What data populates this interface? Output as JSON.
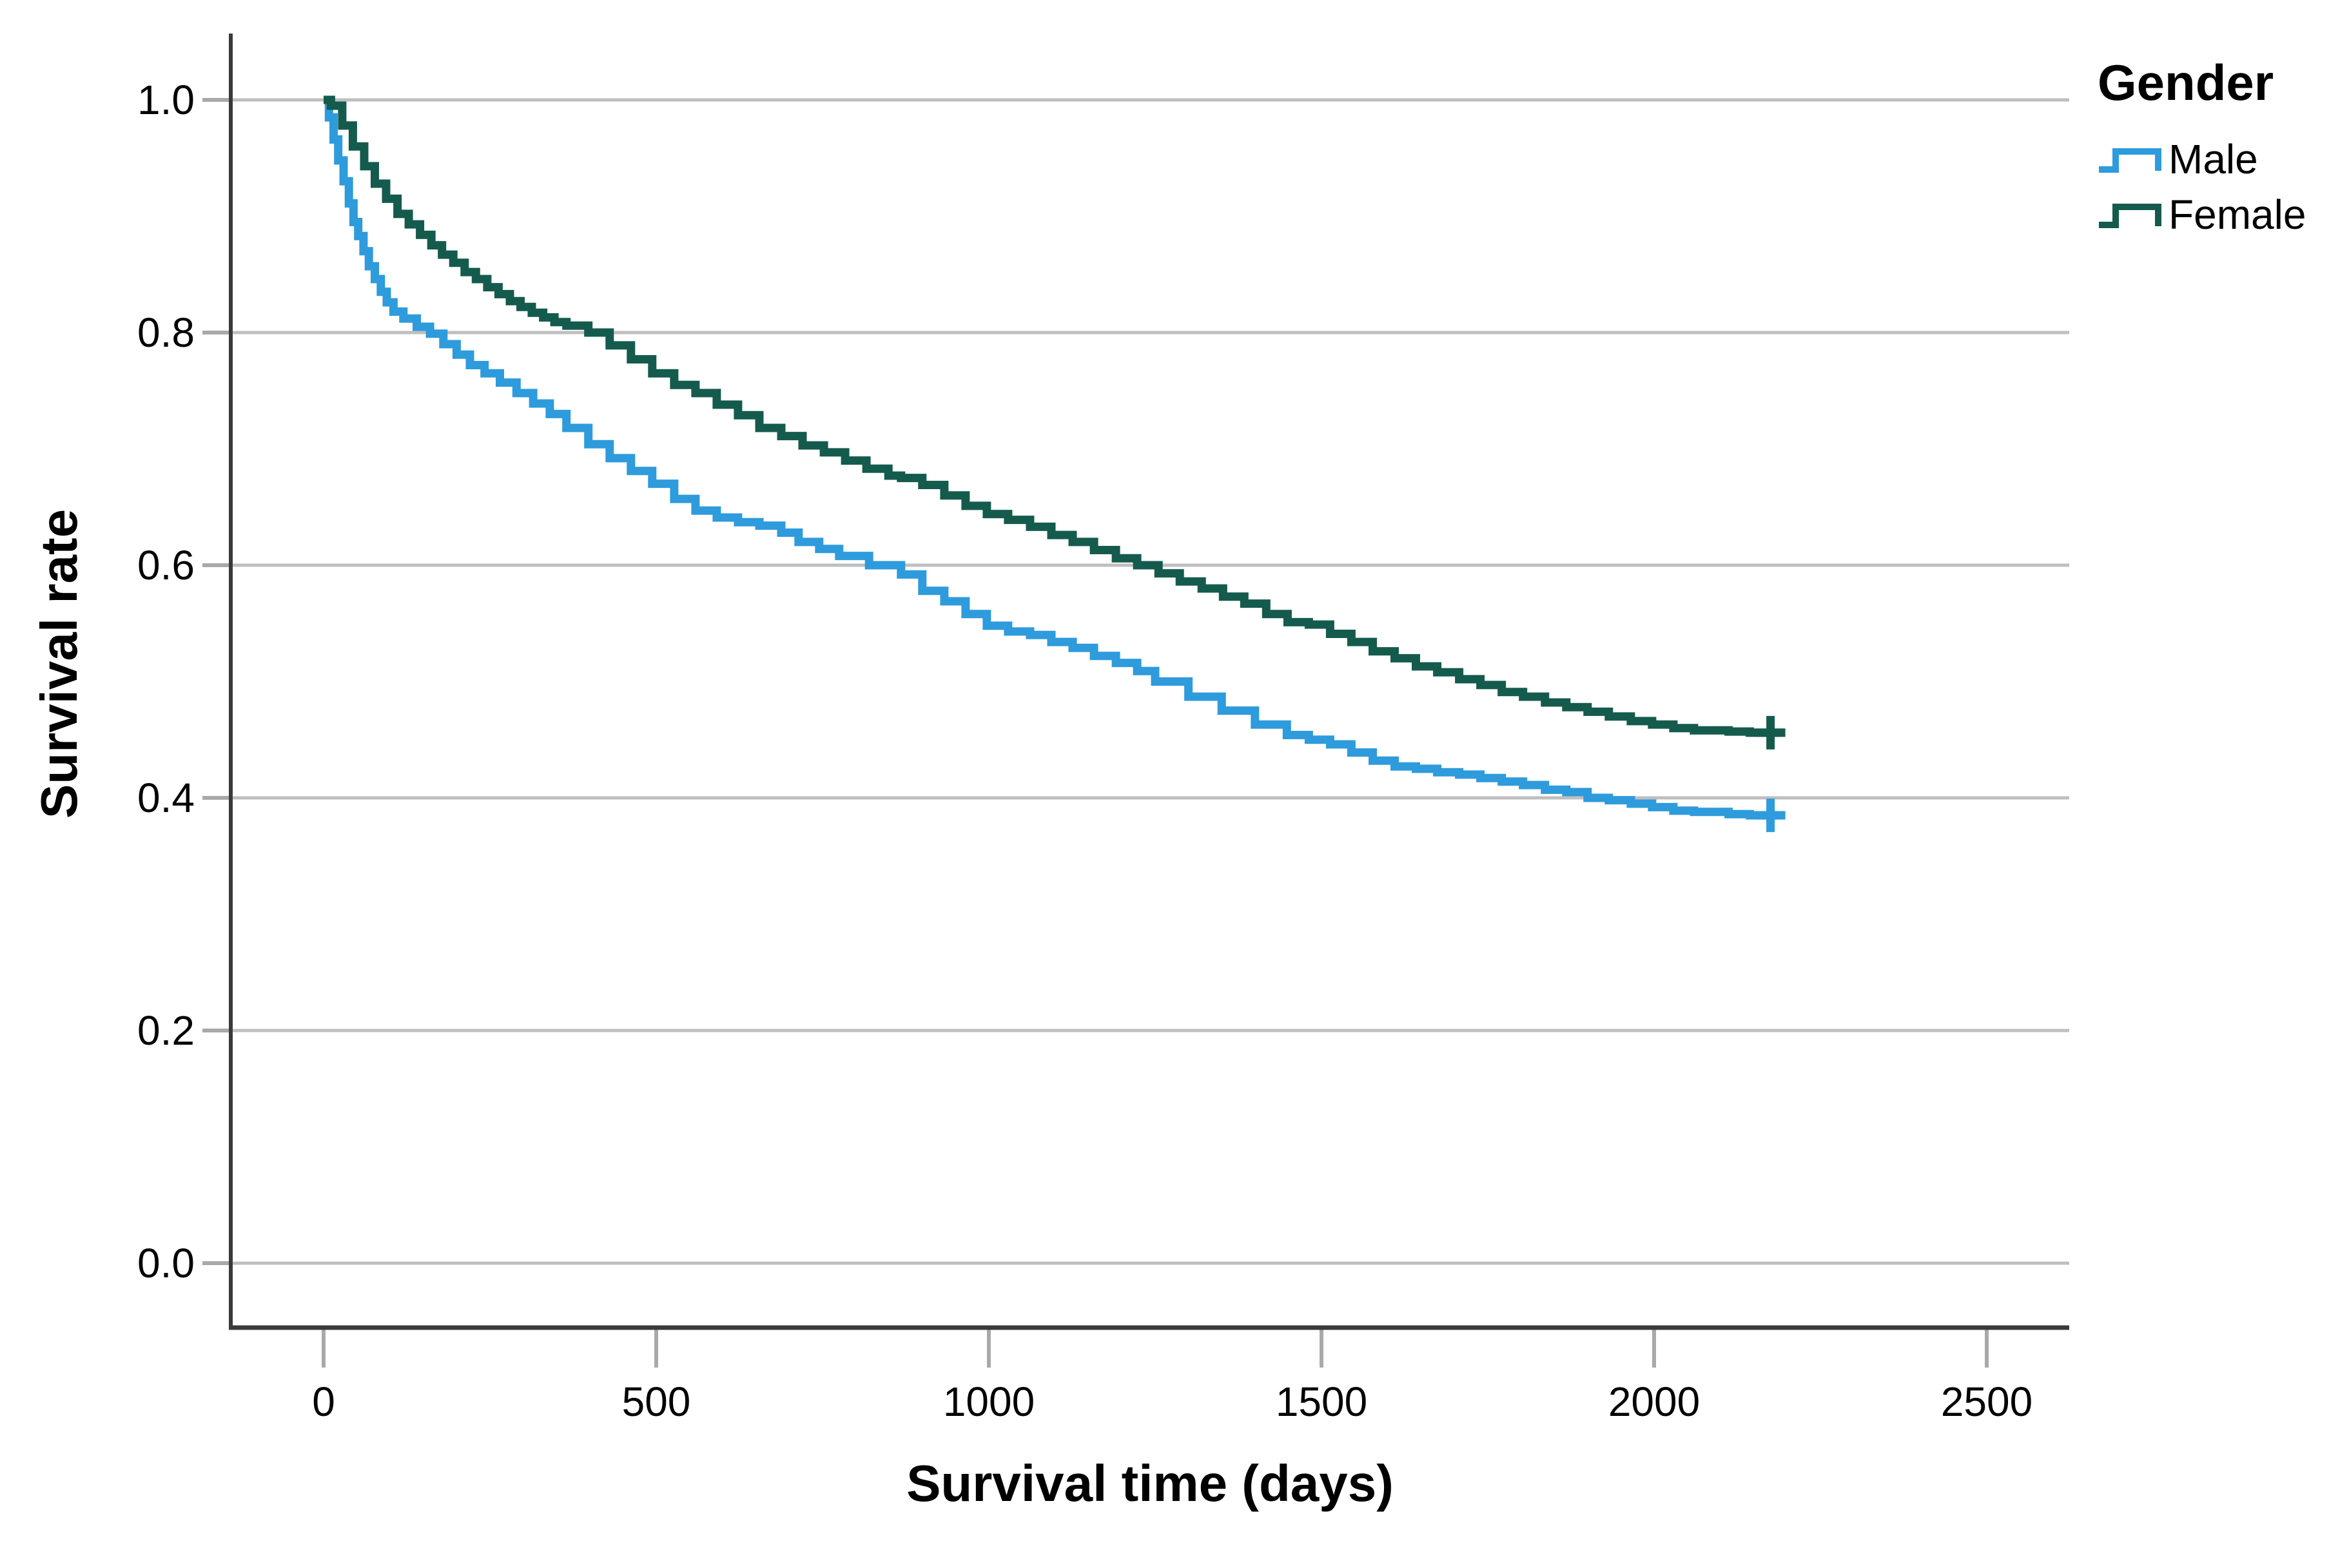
{
  "chart_data": {
    "type": "line",
    "subtype": "kaplan-meier-step-survival",
    "title": "",
    "xlabel": "Survival time (days)",
    "ylabel": "Survival rate",
    "xlim": [
      0,
      2500
    ],
    "ylim": [
      0.0,
      1.0
    ],
    "grid": "horizontal",
    "x_ticks": [
      0,
      500,
      1000,
      1500,
      2000,
      2500
    ],
    "x_tick_labels": [
      "0",
      "500",
      "1000",
      "1500",
      "2000",
      "2500"
    ],
    "y_ticks": [
      0.0,
      0.2,
      0.4,
      0.6,
      0.8,
      1.0
    ],
    "y_tick_labels": [
      "0.0",
      "0.2",
      "0.4",
      "0.6",
      "0.8",
      "1.0"
    ],
    "legend": {
      "title": "Gender",
      "position": "top-right",
      "entries": [
        {
          "label": "Male",
          "color": "#2E9BDC",
          "symbol": "step-line"
        },
        {
          "label": "Female",
          "color": "#145B4D",
          "symbol": "step-line"
        }
      ]
    },
    "colors": {
      "male": "#2E9BDC",
      "female": "#145B4D",
      "gridline": "#BFBFBF",
      "tick": "#A9A9A9",
      "axis": "#3A3A3A",
      "text": "#000000",
      "background": "#FFFFFF"
    },
    "series": [
      {
        "name": "Male",
        "color": "#2E9BDC",
        "censor_marker": "+",
        "censor_times": [
          2175
        ],
        "points": [
          [
            0,
            1.0
          ],
          [
            8,
            0.985
          ],
          [
            15,
            0.966
          ],
          [
            22,
            0.948
          ],
          [
            30,
            0.93
          ],
          [
            38,
            0.911
          ],
          [
            45,
            0.895
          ],
          [
            52,
            0.883
          ],
          [
            60,
            0.87
          ],
          [
            68,
            0.857
          ],
          [
            77,
            0.846
          ],
          [
            86,
            0.835
          ],
          [
            95,
            0.826
          ],
          [
            105,
            0.818
          ],
          [
            120,
            0.812
          ],
          [
            140,
            0.805
          ],
          [
            160,
            0.799
          ],
          [
            180,
            0.79
          ],
          [
            200,
            0.781
          ],
          [
            220,
            0.772
          ],
          [
            242,
            0.765
          ],
          [
            265,
            0.757
          ],
          [
            290,
            0.748
          ],
          [
            315,
            0.739
          ],
          [
            340,
            0.73
          ],
          [
            365,
            0.718
          ],
          [
            398,
            0.704
          ],
          [
            430,
            0.692
          ],
          [
            462,
            0.681
          ],
          [
            494,
            0.67
          ],
          [
            527,
            0.657
          ],
          [
            559,
            0.647
          ],
          [
            591,
            0.641
          ],
          [
            623,
            0.637
          ],
          [
            655,
            0.634
          ],
          [
            688,
            0.628
          ],
          [
            714,
            0.62
          ],
          [
            745,
            0.614
          ],
          [
            775,
            0.608
          ],
          [
            820,
            0.6
          ],
          [
            868,
            0.592
          ],
          [
            900,
            0.578
          ],
          [
            933,
            0.569
          ],
          [
            965,
            0.558
          ],
          [
            997,
            0.548
          ],
          [
            1029,
            0.543
          ],
          [
            1062,
            0.54
          ],
          [
            1094,
            0.534
          ],
          [
            1126,
            0.529
          ],
          [
            1158,
            0.522
          ],
          [
            1191,
            0.516
          ],
          [
            1223,
            0.509
          ],
          [
            1250,
            0.5
          ],
          [
            1300,
            0.487
          ],
          [
            1350,
            0.475
          ],
          [
            1400,
            0.463
          ],
          [
            1448,
            0.454
          ],
          [
            1481,
            0.45
          ],
          [
            1513,
            0.446
          ],
          [
            1545,
            0.439
          ],
          [
            1577,
            0.432
          ],
          [
            1610,
            0.427
          ],
          [
            1642,
            0.425
          ],
          [
            1674,
            0.422
          ],
          [
            1707,
            0.42
          ],
          [
            1739,
            0.417
          ],
          [
            1771,
            0.414
          ],
          [
            1803,
            0.411
          ],
          [
            1836,
            0.407
          ],
          [
            1868,
            0.405
          ],
          [
            1900,
            0.4
          ],
          [
            1932,
            0.398
          ],
          [
            1965,
            0.395
          ],
          [
            1997,
            0.392
          ],
          [
            2029,
            0.389
          ],
          [
            2060,
            0.388
          ],
          [
            2112,
            0.386
          ],
          [
            2144,
            0.385
          ],
          [
            2190,
            0.384
          ]
        ]
      },
      {
        "name": "Female",
        "color": "#145B4D",
        "censor_marker": "+",
        "censor_times": [
          2175
        ],
        "points": [
          [
            0,
            1.0
          ],
          [
            11,
            0.995
          ],
          [
            28,
            0.978
          ],
          [
            44,
            0.96
          ],
          [
            61,
            0.943
          ],
          [
            77,
            0.928
          ],
          [
            94,
            0.915
          ],
          [
            111,
            0.902
          ],
          [
            128,
            0.893
          ],
          [
            145,
            0.884
          ],
          [
            162,
            0.875
          ],
          [
            178,
            0.867
          ],
          [
            195,
            0.86
          ],
          [
            212,
            0.852
          ],
          [
            229,
            0.846
          ],
          [
            246,
            0.839
          ],
          [
            263,
            0.833
          ],
          [
            280,
            0.827
          ],
          [
            296,
            0.822
          ],
          [
            313,
            0.817
          ],
          [
            330,
            0.813
          ],
          [
            347,
            0.809
          ],
          [
            365,
            0.806
          ],
          [
            398,
            0.8
          ],
          [
            430,
            0.789
          ],
          [
            462,
            0.777
          ],
          [
            494,
            0.765
          ],
          [
            527,
            0.755
          ],
          [
            559,
            0.748
          ],
          [
            591,
            0.738
          ],
          [
            623,
            0.729
          ],
          [
            655,
            0.718
          ],
          [
            688,
            0.711
          ],
          [
            720,
            0.703
          ],
          [
            752,
            0.697
          ],
          [
            784,
            0.69
          ],
          [
            816,
            0.683
          ],
          [
            849,
            0.677
          ],
          [
            868,
            0.675
          ],
          [
            900,
            0.669
          ],
          [
            933,
            0.66
          ],
          [
            965,
            0.651
          ],
          [
            997,
            0.644
          ],
          [
            1029,
            0.639
          ],
          [
            1062,
            0.633
          ],
          [
            1094,
            0.626
          ],
          [
            1126,
            0.62
          ],
          [
            1158,
            0.613
          ],
          [
            1191,
            0.606
          ],
          [
            1223,
            0.6
          ],
          [
            1255,
            0.593
          ],
          [
            1287,
            0.586
          ],
          [
            1320,
            0.58
          ],
          [
            1352,
            0.573
          ],
          [
            1384,
            0.567
          ],
          [
            1417,
            0.558
          ],
          [
            1449,
            0.551
          ],
          [
            1481,
            0.549
          ],
          [
            1513,
            0.541
          ],
          [
            1545,
            0.534
          ],
          [
            1577,
            0.526
          ],
          [
            1610,
            0.52
          ],
          [
            1642,
            0.513
          ],
          [
            1674,
            0.508
          ],
          [
            1707,
            0.502
          ],
          [
            1739,
            0.497
          ],
          [
            1771,
            0.491
          ],
          [
            1803,
            0.487
          ],
          [
            1836,
            0.482
          ],
          [
            1868,
            0.478
          ],
          [
            1900,
            0.474
          ],
          [
            1932,
            0.47
          ],
          [
            1965,
            0.466
          ],
          [
            1997,
            0.463
          ],
          [
            2029,
            0.46
          ],
          [
            2060,
            0.458
          ],
          [
            2112,
            0.457
          ],
          [
            2144,
            0.456
          ],
          [
            2190,
            0.455
          ]
        ]
      }
    ]
  }
}
